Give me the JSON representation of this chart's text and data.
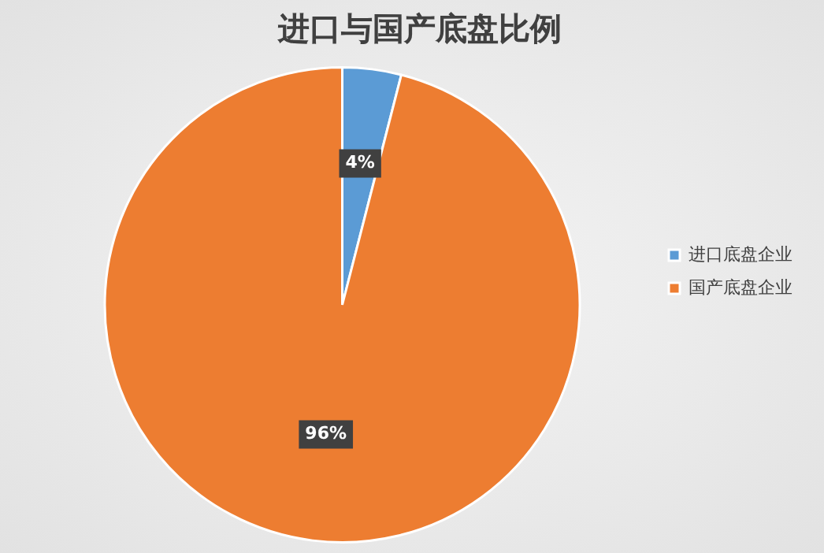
{
  "chart_data": {
    "type": "pie",
    "title": "进口与国产底盘比例",
    "categories": [
      "进口底盘企业",
      "国产底盘企业"
    ],
    "values": [
      4,
      96
    ],
    "colors": [
      "#5b9bd5",
      "#ed7d31"
    ],
    "value_labels": [
      "4%",
      "96%"
    ],
    "legend": "right"
  }
}
